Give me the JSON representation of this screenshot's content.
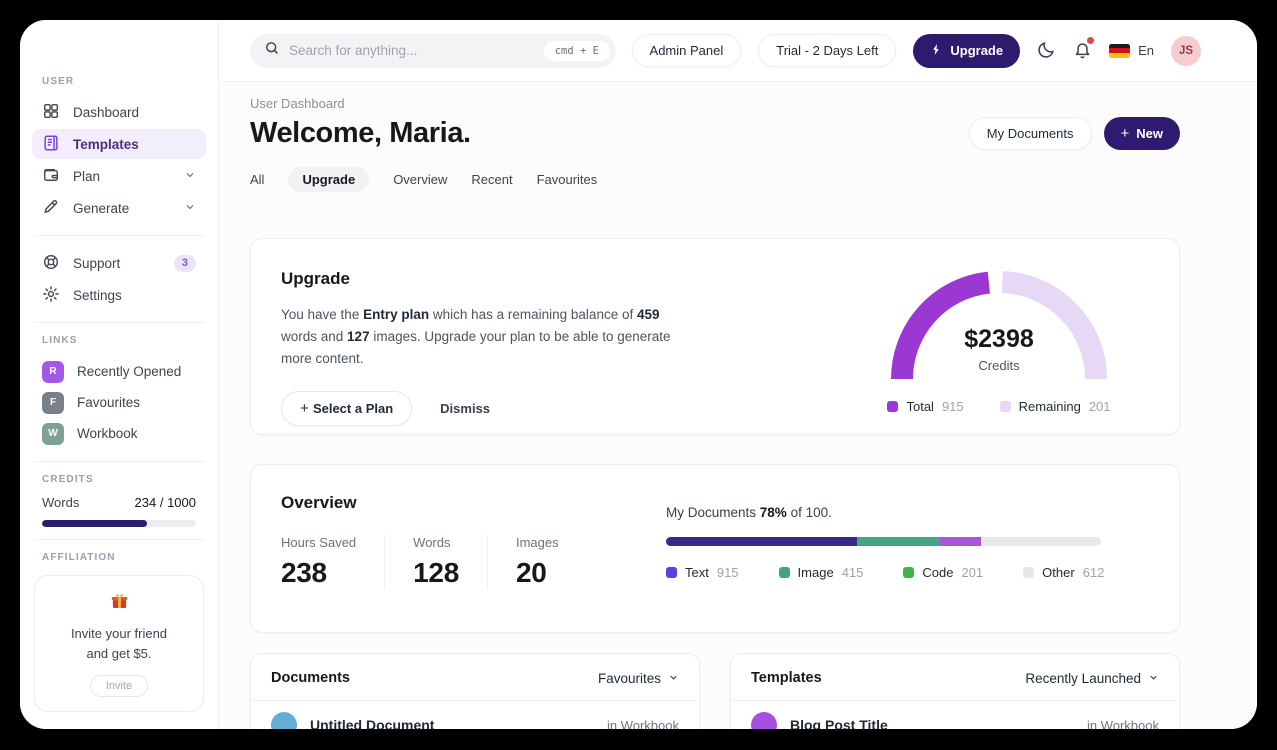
{
  "topbar": {
    "search_placeholder": "Search for anything...",
    "search_shortcut": "cmd + E",
    "admin_panel_label": "Admin Panel",
    "trial_label": "Trial - 2 Days Left",
    "upgrade_label": "Upgrade",
    "language_label": "En",
    "avatar_initials": "JS"
  },
  "sidebar": {
    "section_user": "USER",
    "section_links": "LINKS",
    "section_credits": "CREDITS",
    "section_affiliation": "AFFILIATION",
    "nav": [
      {
        "label": "Dashboard"
      },
      {
        "label": "Templates"
      },
      {
        "label": "Plan"
      },
      {
        "label": "Generate"
      }
    ],
    "support_label": "Support",
    "support_badge": "3",
    "settings_label": "Settings",
    "links": [
      {
        "initial": "R",
        "label": "Recently Opened",
        "color": "#a259e6"
      },
      {
        "initial": "F",
        "label": "Favourites",
        "color": "#7a8089"
      },
      {
        "initial": "W",
        "label": "Workbook",
        "color": "#7fa094"
      }
    ],
    "credits": {
      "label": "Words",
      "value": "234 / 1000",
      "fill_percent": 68,
      "fill_color": "#2e1a6e"
    },
    "affiliation": {
      "line1": "Invite your friend",
      "line2": "and get $5.",
      "invite_button": "Invite"
    }
  },
  "header": {
    "breadcrumb": "User Dashboard",
    "title": "Welcome, Maria.",
    "my_documents_button": "My Documents",
    "new_button": "New",
    "tabs": [
      {
        "label": "All"
      },
      {
        "label": "Upgrade"
      },
      {
        "label": "Overview"
      },
      {
        "label": "Recent"
      },
      {
        "label": "Favourites"
      }
    ]
  },
  "upgrade_card": {
    "title": "Upgrade",
    "body": {
      "t1": "You have the ",
      "b1": "Entry plan",
      "t2": " which has a remaining balance of ",
      "b2": "459",
      "t3": " words and ",
      "b3": "127",
      "t4": " images. Upgrade your plan to be able to generate more content."
    },
    "select_plan_button": "Select a Plan",
    "dismiss_button": "Dismiss"
  },
  "overview_card": {
    "title": "Overview",
    "stats": [
      {
        "label": "Hours Saved",
        "value": "238"
      },
      {
        "label": "Words",
        "value": "128"
      },
      {
        "label": "Images",
        "value": "20"
      }
    ]
  },
  "documents_card": {
    "title": "Documents",
    "filter_label": "Favourites",
    "rows": [
      {
        "title": "Untitled Document",
        "location": "in Workbook",
        "avatar_color": "#64aed3"
      }
    ]
  },
  "templates_card": {
    "title": "Templates",
    "filter_label": "Recently Launched",
    "rows": [
      {
        "title": "Blog Post Title",
        "location": "in Workbook",
        "avatar_color": "#a34fdf"
      }
    ]
  },
  "chart_data": [
    {
      "type": "pie",
      "variant": "semi-donut-gauge",
      "center_value": "$2398",
      "center_label": "Credits",
      "legend_position": "bottom",
      "series": [
        {
          "name": "Total",
          "value": 915,
          "color": "#9b37d2",
          "display_arc_deg": [
            180,
            96
          ]
        },
        {
          "name": "Remaining",
          "value": 201,
          "color": "#e7d9f6",
          "display_arc_deg": [
            88,
            0
          ]
        }
      ]
    },
    {
      "type": "bar",
      "variant": "stacked-progress",
      "label": {
        "t1": "My Documents ",
        "b1": "78%",
        "t2": " of 100."
      },
      "track_color": "#e8e9ed",
      "series": [
        {
          "name": "Text",
          "value": 915,
          "legend_color": "#5542e0",
          "bar_color": "#352a87",
          "display_percent": 44
        },
        {
          "name": "Image",
          "value": 415,
          "legend_color": "#45a287",
          "bar_color": "#4aa389",
          "display_percent": 19
        },
        {
          "name": "Code",
          "value": 201,
          "legend_color": "#3fb24c",
          "bar_color": "#a855d8",
          "display_percent": 9.5
        },
        {
          "name": "Other",
          "value": 612,
          "legend_color": "#e6e7ea",
          "bar_color": "#e8e9ed",
          "display_percent": 27.5
        }
      ]
    }
  ],
  "colors": {
    "accent_dark": "#2e1a6e",
    "active_nav_bg": "#f3eefb",
    "gauge_purple": "#9b37d2"
  }
}
